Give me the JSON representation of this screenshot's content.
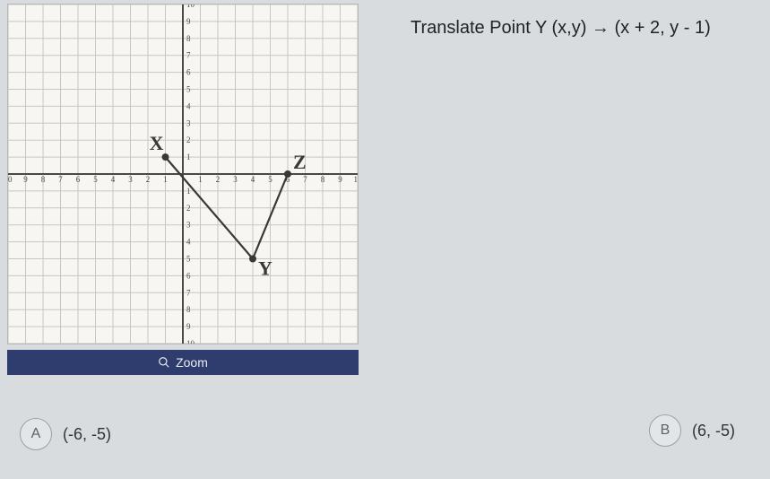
{
  "question_text": "Translate Point Y (x,y) → (x + 2, y - 1)",
  "graph": {
    "type": "coordinate-grid",
    "background_color": "#f7f6f3",
    "gridline_color": "#c8c6c1",
    "axis_color": "#4a4944",
    "xlim": [
      -10,
      10
    ],
    "ylim": [
      -10,
      10
    ],
    "tick_step": 1,
    "tick_fontsize": 9,
    "points": {
      "X": {
        "x": -1,
        "y": 1,
        "label": "X"
      },
      "Y": {
        "x": 4,
        "y": -5,
        "label": "Y"
      },
      "Z": {
        "x": 6,
        "y": 0,
        "label": "Z"
      }
    },
    "edges": [
      {
        "from": "X",
        "to": "Y"
      },
      {
        "from": "Y",
        "to": "Z"
      }
    ],
    "line_width": 2.2,
    "line_color": "#3a3833",
    "point_radius": 4,
    "label_fontsize": 22
  },
  "zoom": {
    "label": "Zoom"
  },
  "answers": {
    "A": {
      "letter": "A",
      "value": "(-6, -5)"
    },
    "B": {
      "letter": "B",
      "value": "(6, -5)"
    }
  }
}
